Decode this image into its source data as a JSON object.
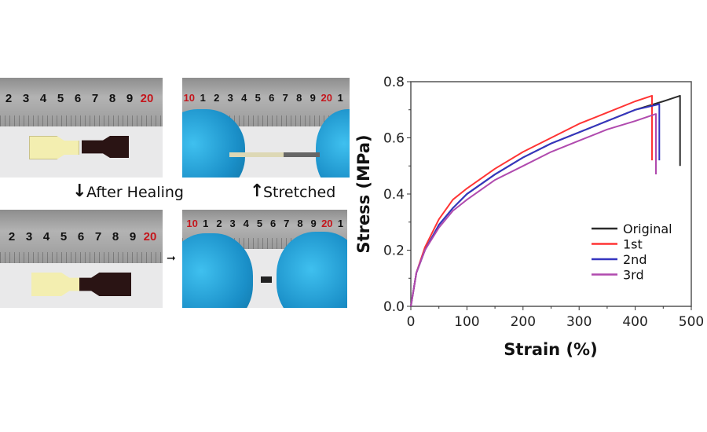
{
  "photos": {
    "ruler_left": [
      "2",
      "3",
      "4",
      "5",
      "6",
      "7",
      "8",
      "9",
      "20"
    ],
    "ruler_right": [
      "10",
      "1",
      "2",
      "3",
      "4",
      "5",
      "6",
      "7",
      "8",
      "9",
      "20",
      "1"
    ],
    "after_healing": "After Healing",
    "stretched": "Stretched",
    "down_arrow": "↓",
    "up_arrow": "↑",
    "right_arrow": "➞"
  },
  "chart_data": {
    "type": "line",
    "xlabel": "Strain (%)",
    "ylabel": "Stress (MPa)",
    "xlim": [
      0,
      500
    ],
    "ylim": [
      0,
      0.8
    ],
    "xticks": [
      "0",
      "100",
      "200",
      "300",
      "400",
      "500"
    ],
    "yticks": [
      "0.0",
      "0.2",
      "0.4",
      "0.6",
      "0.8"
    ],
    "legend_position": "lower-right",
    "series": [
      {
        "name": "Original",
        "color": "#2b2b2b",
        "x": [
          0,
          10,
          25,
          50,
          75,
          100,
          150,
          200,
          250,
          300,
          350,
          400,
          450,
          480,
          480
        ],
        "y": [
          0,
          0.12,
          0.2,
          0.29,
          0.35,
          0.4,
          0.47,
          0.53,
          0.58,
          0.62,
          0.66,
          0.7,
          0.73,
          0.75,
          0.5
        ]
      },
      {
        "name": "1st",
        "color": "#ff3434",
        "x": [
          0,
          10,
          25,
          50,
          75,
          100,
          150,
          200,
          250,
          300,
          350,
          400,
          430,
          430
        ],
        "y": [
          0,
          0.12,
          0.21,
          0.31,
          0.38,
          0.42,
          0.49,
          0.55,
          0.6,
          0.65,
          0.69,
          0.73,
          0.75,
          0.52
        ]
      },
      {
        "name": "2nd",
        "color": "#3535c0",
        "x": [
          0,
          10,
          25,
          50,
          75,
          100,
          150,
          200,
          250,
          300,
          350,
          400,
          443,
          443
        ],
        "y": [
          0,
          0.12,
          0.2,
          0.29,
          0.35,
          0.4,
          0.47,
          0.53,
          0.58,
          0.62,
          0.66,
          0.7,
          0.72,
          0.52
        ]
      },
      {
        "name": "3rd",
        "color": "#b04aae",
        "x": [
          0,
          10,
          25,
          50,
          75,
          100,
          150,
          200,
          250,
          300,
          350,
          400,
          437,
          437
        ],
        "y": [
          0,
          0.12,
          0.2,
          0.28,
          0.34,
          0.38,
          0.45,
          0.5,
          0.55,
          0.59,
          0.63,
          0.66,
          0.685,
          0.47
        ]
      }
    ]
  }
}
